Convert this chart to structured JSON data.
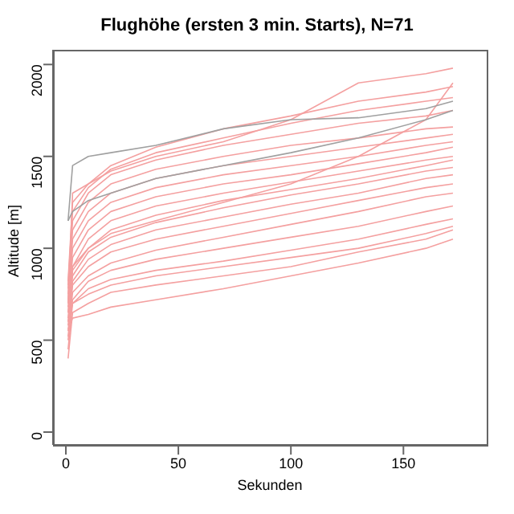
{
  "chart_data": {
    "type": "line",
    "title": "Flughöhe (ersten 3 min. Starts), N=71",
    "xlabel": "Sekunden",
    "ylabel": "Altitude [m]",
    "x": [
      1,
      3,
      10,
      20,
      40,
      70,
      100,
      130,
      160,
      172
    ],
    "xlim": [
      -5.7,
      187
    ],
    "xticks": [
      0,
      50,
      100,
      150
    ],
    "ylim": [
      -70,
      2080
    ],
    "yticks": [
      0,
      500,
      1000,
      1500,
      2000
    ],
    "marker": "none",
    "line_style": "solid",
    "series": [
      {
        "color": "#f4a0a0",
        "values": [
          400,
          650,
          700,
          760,
          800,
          850,
          900,
          980,
          1050,
          1100
        ]
      },
      {
        "color": "#f4a0a0",
        "values": [
          450,
          700,
          780,
          830,
          880,
          930,
          990,
          1050,
          1130,
          1160
        ]
      },
      {
        "color": "#f4a0a0",
        "values": [
          500,
          720,
          820,
          880,
          940,
          1000,
          1060,
          1120,
          1200,
          1230
        ]
      },
      {
        "color": "#f4a0a0",
        "values": [
          520,
          760,
          850,
          920,
          990,
          1060,
          1130,
          1200,
          1280,
          1300
        ]
      },
      {
        "color": "#f4a0a0",
        "values": [
          550,
          800,
          900,
          980,
          1050,
          1120,
          1190,
          1260,
          1330,
          1350
        ]
      },
      {
        "color": "#f4a0a0",
        "values": [
          580,
          820,
          940,
          1020,
          1100,
          1170,
          1240,
          1300,
          1380,
          1400
        ]
      },
      {
        "color": "#f4a0a0",
        "values": [
          600,
          850,
          980,
          1060,
          1140,
          1220,
          1290,
          1350,
          1420,
          1440
        ]
      },
      {
        "color": "#f4a0a0",
        "values": [
          620,
          880,
          1000,
          1100,
          1180,
          1260,
          1320,
          1380,
          1450,
          1480
        ]
      },
      {
        "color": "#f4a0a0",
        "values": [
          650,
          900,
          1050,
          1150,
          1230,
          1300,
          1360,
          1420,
          1480,
          1500
        ]
      },
      {
        "color": "#f4a0a0",
        "values": [
          680,
          950,
          1100,
          1200,
          1280,
          1350,
          1400,
          1460,
          1520,
          1550
        ]
      },
      {
        "color": "#f4a0a0",
        "values": [
          700,
          1000,
          1150,
          1250,
          1330,
          1400,
          1450,
          1500,
          1560,
          1580
        ]
      },
      {
        "color": "#f4a0a0",
        "values": [
          720,
          1050,
          1200,
          1300,
          1380,
          1450,
          1500,
          1550,
          1600,
          1620
        ]
      },
      {
        "color": "#f4a0a0",
        "values": [
          750,
          1100,
          1250,
          1350,
          1430,
          1500,
          1560,
          1600,
          1650,
          1660
        ]
      },
      {
        "color": "#f4a0a0",
        "values": [
          780,
          1150,
          1300,
          1400,
          1480,
          1560,
          1620,
          1680,
          1720,
          1750
        ]
      },
      {
        "color": "#f4a0a0",
        "values": [
          800,
          1200,
          1330,
          1430,
          1520,
          1600,
          1680,
          1750,
          1800,
          1820
        ]
      },
      {
        "color": "#f4a0a0",
        "values": [
          820,
          1250,
          1350,
          1450,
          1550,
          1650,
          1720,
          1800,
          1850,
          1880
        ]
      },
      {
        "color": "#f4a0a0",
        "values": [
          600,
          700,
          750,
          800,
          850,
          900,
          950,
          1000,
          1080,
          1120
        ]
      },
      {
        "color": "#f4a0a0",
        "values": [
          560,
          620,
          640,
          680,
          720,
          780,
          850,
          920,
          1000,
          1050
        ]
      },
      {
        "color": "#f4a0a0",
        "values": [
          700,
          1300,
          1350,
          1420,
          1500,
          1580,
          1700,
          1900,
          1950,
          1980
        ]
      },
      {
        "color": "#f4a0a0",
        "values": [
          650,
          900,
          1000,
          1080,
          1150,
          1250,
          1350,
          1500,
          1700,
          1900
        ]
      },
      {
        "color": "#a0a0a0",
        "values": [
          1150,
          1450,
          1500,
          1520,
          1560,
          1650,
          1700,
          1710,
          1760,
          1800
        ]
      },
      {
        "color": "#a0a0a0",
        "values": [
          1150,
          1200,
          1260,
          1300,
          1380,
          1450,
          1520,
          1600,
          1700,
          1750
        ]
      }
    ]
  }
}
